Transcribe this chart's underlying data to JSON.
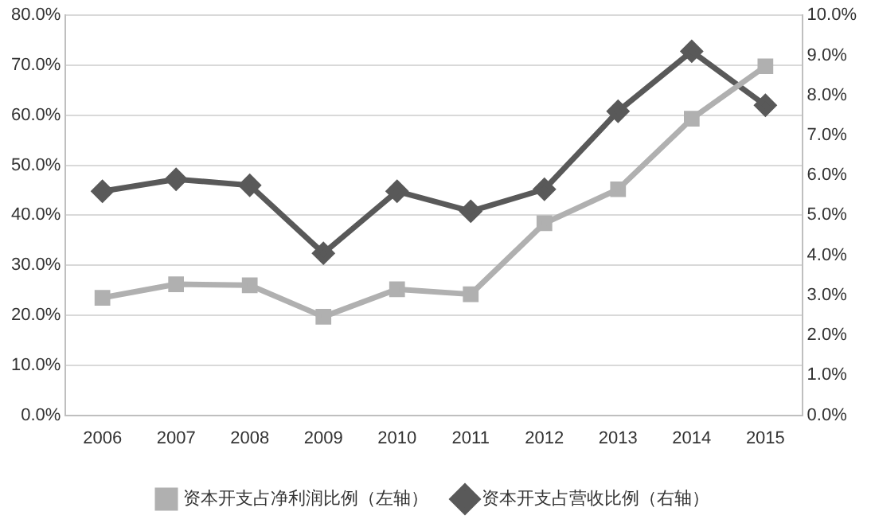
{
  "chart_data": {
    "type": "line",
    "categories": [
      "2006",
      "2007",
      "2008",
      "2009",
      "2010",
      "2011",
      "2012",
      "2013",
      "2014",
      "2015"
    ],
    "series": [
      {
        "name": "资本开支占净利润比例（左轴）",
        "color": "#b0b0b0",
        "marker": "square",
        "values": [
          23.5,
          26.2,
          26.0,
          19.7,
          25.2,
          24.2,
          38.4,
          45.2,
          59.3,
          69.8
        ]
      },
      {
        "name": "资本开支占营收比例（右轴）",
        "color": "#595959",
        "marker": "diamond",
        "axis": "y2",
        "values": [
          5.6,
          5.9,
          5.75,
          4.05,
          5.6,
          5.1,
          5.65,
          7.6,
          9.1,
          7.75
        ]
      }
    ],
    "ylim": [
      0,
      80
    ],
    "yticks": [
      {
        "value": 0,
        "label": "0.0%"
      },
      {
        "value": 10,
        "label": "10.0%"
      },
      {
        "value": 20,
        "label": "20.0%"
      },
      {
        "value": 30,
        "label": "30.0%"
      },
      {
        "value": 40,
        "label": "40.0%"
      },
      {
        "value": 50,
        "label": "50.0%"
      },
      {
        "value": 60,
        "label": "60.0%"
      },
      {
        "value": 70,
        "label": "70.0%"
      },
      {
        "value": 80,
        "label": "80.0%"
      }
    ],
    "y2lim": [
      0,
      10
    ],
    "y2ticks": [
      {
        "value": 0,
        "label": "0.0%"
      },
      {
        "value": 1,
        "label": "1.0%"
      },
      {
        "value": 2,
        "label": "2.0%"
      },
      {
        "value": 3,
        "label": "3.0%"
      },
      {
        "value": 4,
        "label": "4.0%"
      },
      {
        "value": 5,
        "label": "5.0%"
      },
      {
        "value": 6,
        "label": "6.0%"
      },
      {
        "value": 7,
        "label": "7.0%"
      },
      {
        "value": 8,
        "label": "8.0%"
      },
      {
        "value": 9,
        "label": "9.0%"
      },
      {
        "value": 10,
        "label": "10.0%"
      }
    ],
    "grid": "y",
    "legend": "bottom",
    "line_style": "solid"
  }
}
